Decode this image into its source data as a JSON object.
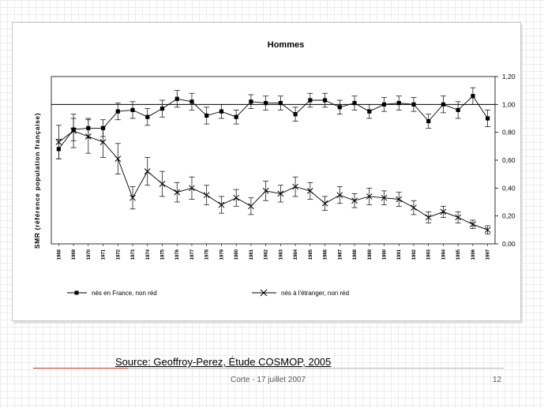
{
  "slide": {
    "source": "Source: Geoffroy-Perez, Étude COSMOP, 2005",
    "footer_center": "Corte - 17 juillet 2007",
    "page_number": "12"
  },
  "chart_data": {
    "type": "line",
    "title": "Hommes",
    "ylabel": "SMR (référence population française)",
    "xlabel": "",
    "ylim": [
      0,
      1.2
    ],
    "yticks": [
      "0,00",
      "0,20",
      "0,40",
      "0,60",
      "0,80",
      "1,00",
      "1,20"
    ],
    "y_axis_side": "right",
    "reference_line": 1.0,
    "grid": false,
    "legend_position": "bottom",
    "categories": [
      "1968",
      "1969",
      "1970",
      "1971",
      "1972",
      "1973",
      "1974",
      "1975",
      "1976",
      "1977",
      "1978",
      "1979",
      "1980",
      "1981",
      "1982",
      "1983",
      "1984",
      "1985",
      "1986",
      "1987",
      "1988",
      "1989",
      "1990",
      "1991",
      "1992",
      "1993",
      "1994",
      "1995",
      "1996",
      "1997"
    ],
    "series": [
      {
        "name": "nés en France, non réd",
        "marker": "square",
        "values": [
          0.68,
          0.82,
          0.83,
          0.83,
          0.95,
          0.96,
          0.91,
          0.97,
          1.04,
          1.02,
          0.92,
          0.95,
          0.91,
          1.02,
          1.01,
          1.01,
          0.93,
          1.03,
          1.03,
          0.98,
          1.01,
          0.95,
          1.0,
          1.01,
          1.0,
          0.88,
          1.0,
          0.96,
          1.06,
          0.9
        ],
        "errors": [
          0.07,
          0.08,
          0.07,
          0.06,
          0.06,
          0.06,
          0.06,
          0.06,
          0.06,
          0.06,
          0.06,
          0.05,
          0.05,
          0.05,
          0.05,
          0.05,
          0.05,
          0.05,
          0.05,
          0.05,
          0.05,
          0.05,
          0.05,
          0.05,
          0.05,
          0.05,
          0.06,
          0.06,
          0.06,
          0.06
        ]
      },
      {
        "name": "nés à l'étranger, non réd",
        "marker": "cross",
        "values": [
          0.73,
          0.81,
          0.77,
          0.73,
          0.61,
          0.33,
          0.52,
          0.43,
          0.37,
          0.4,
          0.35,
          0.28,
          0.33,
          0.27,
          0.38,
          0.36,
          0.41,
          0.38,
          0.29,
          0.35,
          0.31,
          0.34,
          0.33,
          0.32,
          0.26,
          0.19,
          0.23,
          0.19,
          0.14,
          0.1
        ]
      }
    ],
    "series_errors_second": [
      0.12,
      0.12,
      0.12,
      0.11,
      0.11,
      0.08,
      0.1,
      0.09,
      0.07,
      0.08,
      0.07,
      0.06,
      0.06,
      0.06,
      0.07,
      0.06,
      0.07,
      0.06,
      0.05,
      0.06,
      0.05,
      0.06,
      0.05,
      0.05,
      0.05,
      0.04,
      0.04,
      0.04,
      0.03,
      0.03
    ]
  }
}
